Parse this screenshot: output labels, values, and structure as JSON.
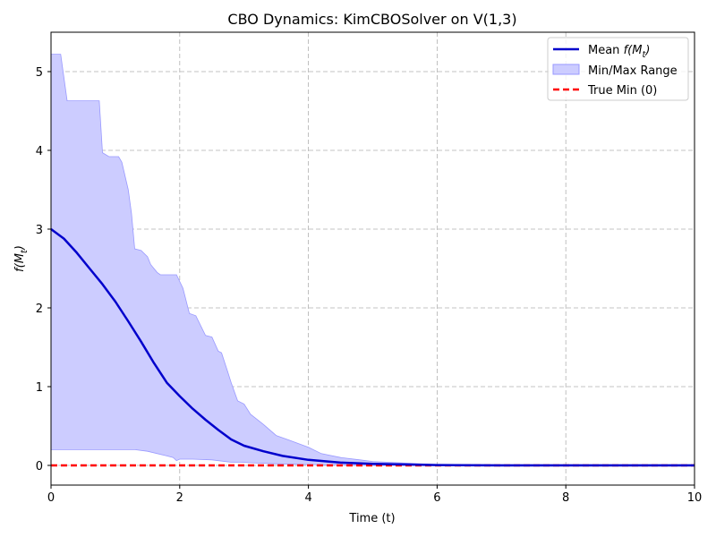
{
  "colors": {
    "mean_line": "#0000cc",
    "range_fill": "#ccccff",
    "range_edge": "#9999ff",
    "true_min": "#ff0000",
    "grid": "#b0b0b0"
  },
  "chart_data": {
    "type": "line",
    "title": "CBO Dynamics: KimCBOSolver on V(1,3)",
    "xlabel": "Time (t)",
    "ylabel_main": "f(M",
    "ylabel_sub": "t",
    "ylabel_end": ")",
    "xlim": [
      0,
      10
    ],
    "ylim": [
      -0.25,
      5.5
    ],
    "x_ticks": [
      0,
      2,
      4,
      6,
      8,
      10
    ],
    "x_tick_labels": [
      "0",
      "2",
      "4",
      "6",
      "8",
      "10"
    ],
    "y_ticks": [
      0,
      1,
      2,
      3,
      4,
      5
    ],
    "y_tick_labels": [
      "0",
      "1",
      "2",
      "3",
      "4",
      "5"
    ],
    "grid": true,
    "legend_position": "top-right",
    "legend": {
      "mean_prefix": "Mean ",
      "mean_math": "f(M",
      "mean_sub": "t",
      "mean_end": ")",
      "range": "Min/Max Range",
      "true_min": "True Min (0)"
    },
    "series": [
      {
        "name": "Mean f(M_t)",
        "kind": "line",
        "x": [
          0,
          0.2,
          0.4,
          0.6,
          0.8,
          1.0,
          1.2,
          1.4,
          1.6,
          1.8,
          2.0,
          2.2,
          2.4,
          2.6,
          2.8,
          3.0,
          3.3,
          3.6,
          4.0,
          4.5,
          5.0,
          6.0,
          7.0,
          8.0,
          10.0
        ],
        "y": [
          3.0,
          2.88,
          2.7,
          2.5,
          2.3,
          2.08,
          1.83,
          1.57,
          1.3,
          1.05,
          0.88,
          0.72,
          0.58,
          0.45,
          0.33,
          0.25,
          0.18,
          0.12,
          0.07,
          0.035,
          0.02,
          0.005,
          0.0,
          0.0,
          0.0
        ]
      },
      {
        "name": "Min/Max Range",
        "kind": "band",
        "x_upper": [
          0,
          0.15,
          0.25,
          0.75,
          0.8,
          0.9,
          1.05,
          1.1,
          1.2,
          1.25,
          1.3,
          1.4,
          1.5,
          1.55,
          1.65,
          1.7,
          1.75,
          1.8,
          1.95,
          2.05,
          2.15,
          2.25,
          2.4,
          2.5,
          2.6,
          2.65,
          2.75,
          2.8,
          2.9,
          3.0,
          3.1,
          3.3,
          3.5,
          3.7,
          4.0,
          4.2,
          4.5,
          4.8,
          5.0,
          5.5,
          6.0,
          10.0
        ],
        "upper": [
          5.22,
          5.22,
          4.63,
          4.63,
          3.97,
          3.92,
          3.92,
          3.85,
          3.5,
          3.2,
          2.75,
          2.73,
          2.65,
          2.55,
          2.45,
          2.42,
          2.42,
          2.42,
          2.42,
          2.25,
          1.93,
          1.9,
          1.65,
          1.63,
          1.45,
          1.43,
          1.18,
          1.05,
          0.82,
          0.78,
          0.65,
          0.52,
          0.38,
          0.32,
          0.23,
          0.15,
          0.1,
          0.07,
          0.05,
          0.03,
          0.01,
          0.01
        ],
        "x_lower": [
          0,
          1.3,
          1.5,
          1.8,
          1.9,
          1.95,
          2.0,
          2.2,
          2.5,
          2.8,
          2.95,
          3.2,
          3.5,
          4.0,
          4.5,
          5.0,
          6.0,
          10.0
        ],
        "lower": [
          0.2,
          0.2,
          0.18,
          0.12,
          0.1,
          0.06,
          0.08,
          0.08,
          0.07,
          0.04,
          0.04,
          0.03,
          0.02,
          0.01,
          0.005,
          0.0,
          0.0,
          0.0
        ]
      },
      {
        "name": "True Min (0)",
        "kind": "hline",
        "y": 0
      }
    ]
  }
}
